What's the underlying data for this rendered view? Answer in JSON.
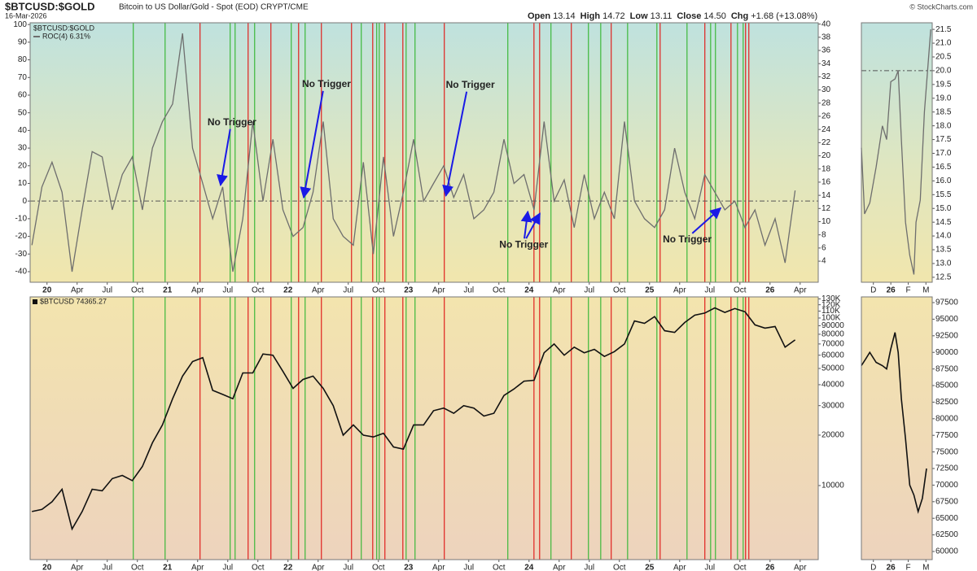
{
  "header": {
    "symbol": "$BTCUSD:$GOLD",
    "description": "Bitcoin to US Dollar/Gold - Spot (EOD) CRYPT/CME",
    "date": "16-Mar-2026",
    "quote": [
      {
        "label": "Open",
        "value": "13.14"
      },
      {
        "label": "High",
        "value": "14.72"
      },
      {
        "label": "Low",
        "value": "13.11"
      },
      {
        "label": "Close",
        "value": "14.50"
      },
      {
        "label": "Chg",
        "value": "+1.68 (+13.08%)"
      }
    ],
    "copyright": "© StockCharts.com"
  },
  "chart_data": [
    {
      "type": "line",
      "legend_title": "$BTCUSD:$GOLD",
      "x": [
        2019.875,
        2019.958,
        2020.042,
        2020.125,
        2020.208,
        2020.292,
        2020.375,
        2020.458,
        2020.542,
        2020.625,
        2020.708,
        2020.792,
        2020.875,
        2020.958,
        2021.042,
        2021.125,
        2021.208,
        2021.292,
        2021.375,
        2021.458,
        2021.542,
        2021.625,
        2021.708,
        2021.792,
        2021.875,
        2021.958,
        2022.042,
        2022.125,
        2022.208,
        2022.292,
        2022.375,
        2022.458,
        2022.542,
        2022.625,
        2022.708,
        2022.792,
        2022.875,
        2022.958,
        2023.042,
        2023.125,
        2023.208,
        2023.292,
        2023.375,
        2023.458,
        2023.542,
        2023.625,
        2023.708,
        2023.792,
        2023.875,
        2023.958,
        2024.042,
        2024.125,
        2024.208,
        2024.292,
        2024.375,
        2024.458,
        2024.542,
        2024.625,
        2024.708,
        2024.792,
        2024.875,
        2024.958,
        2025.042,
        2025.125,
        2025.208,
        2025.292,
        2025.375,
        2025.458,
        2025.542,
        2025.625,
        2025.708,
        2025.792,
        2025.875,
        2025.958,
        2026.042,
        2026.125,
        2026.208
      ],
      "series": [
        {
          "name": "ROC(4) 6.31%",
          "color": "#6e6e6e",
          "values": [
            -25,
            8,
            22,
            5,
            -40,
            -5,
            28,
            25,
            -5,
            15,
            25,
            -5,
            30,
            45,
            55,
            95,
            30,
            10,
            -10,
            8,
            -40,
            -10,
            45,
            0,
            35,
            -5,
            -20,
            -15,
            5,
            45,
            -10,
            -20,
            -25,
            22,
            -30,
            25,
            -20,
            5,
            35,
            0,
            10,
            20,
            2,
            15,
            -10,
            -5,
            5,
            35,
            10,
            15,
            -5,
            45,
            0,
            12,
            -15,
            15,
            -10,
            5,
            -10,
            45,
            0,
            -10,
            -15,
            -5,
            30,
            5,
            -10,
            15,
            5,
            -5,
            0,
            -15,
            -5,
            -25,
            -10,
            -35,
            6
          ]
        }
      ],
      "xlim": [
        2019.86,
        2026.4
      ],
      "xticks": [
        {
          "value": 2020,
          "label": "20"
        },
        {
          "value": 2020.25,
          "label": "Apr"
        },
        {
          "value": 2020.5,
          "label": "Jul"
        },
        {
          "value": 2020.75,
          "label": "Oct"
        },
        {
          "value": 2021,
          "label": "21"
        },
        {
          "value": 2021.25,
          "label": "Apr"
        },
        {
          "value": 2021.5,
          "label": "Jul"
        },
        {
          "value": 2021.75,
          "label": "Oct"
        },
        {
          "value": 2022,
          "label": "22"
        },
        {
          "value": 2022.25,
          "label": "Apr"
        },
        {
          "value": 2022.5,
          "label": "Jul"
        },
        {
          "value": 2022.75,
          "label": "Oct"
        },
        {
          "value": 2023,
          "label": "23"
        },
        {
          "value": 2023.25,
          "label": "Apr"
        },
        {
          "value": 2023.5,
          "label": "Jul"
        },
        {
          "value": 2023.75,
          "label": "Oct"
        },
        {
          "value": 2024,
          "label": "24"
        },
        {
          "value": 2024.25,
          "label": "Apr"
        },
        {
          "value": 2024.5,
          "label": "Jul"
        },
        {
          "value": 2024.75,
          "label": "Oct"
        },
        {
          "value": 2025,
          "label": "25"
        },
        {
          "value": 2025.25,
          "label": "Apr"
        },
        {
          "value": 2025.5,
          "label": "Jul"
        },
        {
          "value": 2025.75,
          "label": "Oct"
        },
        {
          "value": 2026,
          "label": "26"
        },
        {
          "value": 2026.25,
          "label": "Apr"
        }
      ],
      "ylim": [
        -46,
        101
      ],
      "yticks": [
        -40,
        -30,
        -20,
        -10,
        0,
        10,
        20,
        30,
        40,
        50,
        60,
        70,
        80,
        90,
        100
      ],
      "y2lim": [
        0.8,
        40.2
      ],
      "y2ticks": [
        4,
        6,
        8,
        10,
        12,
        14,
        16,
        18,
        20,
        22,
        24,
        26,
        28,
        30,
        32,
        34,
        36,
        38,
        40
      ],
      "refline": 0,
      "vlines": [
        {
          "color": "#e0201e",
          "x": [
            2021.27,
            2021.669,
            2021.858,
            2022.088,
            2022.277,
            2022.527,
            2022.703,
            2022.804,
            2022.953,
            2023.297,
            2024.041,
            2024.088,
            2024.351,
            2024.682,
            2025.088,
            2025.459,
            2025.676,
            2025.797,
            2025.824
          ]
        },
        {
          "color": "#3cb83a",
          "x": [
            2020.716,
            2020.98,
            2021.52,
            2021.561,
            2021.723,
            2022.027,
            2022.142,
            2022.608,
            2022.736,
            2022.757,
            2022.98,
            2023.054,
            2023.824,
            2024.182,
            2024.493,
            2024.595,
            2024.818,
            2025.061,
            2025.311,
            2025.507,
            2025.547,
            2025.73,
            2025.777
          ]
        }
      ],
      "annotations": [
        {
          "text": "No Trigger",
          "targets": [
            [
              2021.44,
              9
            ]
          ]
        },
        {
          "text": "No Trigger",
          "targets": [
            [
              2022.13,
              2
            ]
          ]
        },
        {
          "text": "No Trigger",
          "targets": [
            [
              2023.31,
              3
            ]
          ]
        },
        {
          "text": "No Trigger",
          "targets": [
            [
              2023.99,
              -6
            ],
            [
              2024.09,
              -7
            ]
          ]
        },
        {
          "text": "No Trigger",
          "targets": [
            [
              2025.59,
              -4
            ]
          ]
        }
      ],
      "annotation_color": "#1a1ae6"
    },
    {
      "type": "line",
      "log_scale": true,
      "x": [
        2019.875,
        2019.958,
        2020.042,
        2020.125,
        2020.208,
        2020.292,
        2020.375,
        2020.458,
        2020.542,
        2020.625,
        2020.708,
        2020.792,
        2020.875,
        2020.958,
        2021.042,
        2021.125,
        2021.208,
        2021.292,
        2021.375,
        2021.458,
        2021.542,
        2021.625,
        2021.708,
        2021.792,
        2021.875,
        2021.958,
        2022.042,
        2022.125,
        2022.208,
        2022.292,
        2022.375,
        2022.458,
        2022.542,
        2022.625,
        2022.708,
        2022.792,
        2022.875,
        2022.958,
        2023.042,
        2023.125,
        2023.208,
        2023.292,
        2023.375,
        2023.458,
        2023.542,
        2023.625,
        2023.708,
        2023.792,
        2023.875,
        2023.958,
        2024.042,
        2024.125,
        2024.208,
        2024.292,
        2024.375,
        2024.458,
        2024.542,
        2024.625,
        2024.708,
        2024.792,
        2024.875,
        2024.958,
        2025.042,
        2025.125,
        2025.208,
        2025.292,
        2025.375,
        2025.458,
        2025.542,
        2025.625,
        2025.708,
        2025.792,
        2025.875,
        2025.958,
        2026.042,
        2026.125,
        2026.208
      ],
      "series": [
        {
          "name": "$BTCUSD 74365.27",
          "color": "#111111",
          "values": [
            7000,
            7200,
            8000,
            9500,
            5500,
            7000,
            9500,
            9300,
            11000,
            11500,
            10700,
            13000,
            18000,
            23000,
            33000,
            45000,
            55000,
            58000,
            37000,
            35000,
            33000,
            47000,
            47000,
            61000,
            60000,
            48000,
            38000,
            43000,
            45000,
            38000,
            30000,
            20000,
            23000,
            20000,
            19500,
            20500,
            17000,
            16500,
            23000,
            23000,
            28000,
            29000,
            27000,
            30000,
            29000,
            26000,
            27000,
            34500,
            37700,
            42000,
            42500,
            62000,
            70000,
            60000,
            67000,
            62000,
            65000,
            59000,
            63000,
            70000,
            96000,
            93000,
            102000,
            84000,
            82000,
            94000,
            104000,
            107000,
            115000,
            108000,
            114000,
            109000,
            91000,
            87000,
            89000,
            67000,
            74000
          ]
        }
      ],
      "xlim": [
        2019.86,
        2026.4
      ],
      "xticks": [
        {
          "value": 2020,
          "label": "20"
        },
        {
          "value": 2020.25,
          "label": "Apr"
        },
        {
          "value": 2020.5,
          "label": "Jul"
        },
        {
          "value": 2020.75,
          "label": "Oct"
        },
        {
          "value": 2021,
          "label": "21"
        },
        {
          "value": 2021.25,
          "label": "Apr"
        },
        {
          "value": 2021.5,
          "label": "Jul"
        },
        {
          "value": 2021.75,
          "label": "Oct"
        },
        {
          "value": 2022,
          "label": "22"
        },
        {
          "value": 2022.25,
          "label": "Apr"
        },
        {
          "value": 2022.5,
          "label": "Jul"
        },
        {
          "value": 2022.75,
          "label": "Oct"
        },
        {
          "value": 2023,
          "label": "23"
        },
        {
          "value": 2023.25,
          "label": "Apr"
        },
        {
          "value": 2023.5,
          "label": "Jul"
        },
        {
          "value": 2023.75,
          "label": "Oct"
        },
        {
          "value": 2024,
          "label": "24"
        },
        {
          "value": 2024.25,
          "label": "Apr"
        },
        {
          "value": 2024.5,
          "label": "Jul"
        },
        {
          "value": 2024.75,
          "label": "Oct"
        },
        {
          "value": 2025,
          "label": "25"
        },
        {
          "value": 2025.25,
          "label": "Apr"
        },
        {
          "value": 2025.5,
          "label": "Jul"
        },
        {
          "value": 2025.75,
          "label": "Oct"
        },
        {
          "value": 2026,
          "label": "26"
        },
        {
          "value": 2026.25,
          "label": "Apr"
        }
      ],
      "ylim": [
        3614,
        133700
      ],
      "yticks": [
        10000,
        20000,
        30000,
        40000,
        50000,
        60000,
        70000,
        80000,
        90000,
        {
          "value": 100000,
          "label": "100K"
        },
        {
          "value": 110000,
          "label": "110K"
        },
        {
          "value": 120000,
          "label": "120K"
        },
        {
          "value": 130000,
          "label": "130K"
        }
      ]
    },
    {
      "type": "line",
      "x": [
        2025.86,
        2025.875,
        2025.9,
        2025.93,
        2025.96,
        2025.98,
        2026.0,
        2026.02,
        2026.035,
        2026.05,
        2026.07,
        2026.09,
        2026.11,
        2026.12,
        2026.14,
        2026.16,
        2026.19
      ],
      "series": [
        {
          "color": "#6e6e6e",
          "values": [
            17.2,
            14.8,
            15.2,
            16.5,
            18.0,
            17.5,
            19.6,
            19.7,
            20.0,
            17.5,
            14.5,
            13.3,
            12.6,
            14.5,
            15.3,
            18.5,
            21.5
          ]
        }
      ],
      "xlim": [
        2025.86,
        2026.197
      ],
      "xticks": [
        {
          "value": 2025.917,
          "label": "D"
        },
        {
          "value": 2026.0,
          "label": "26"
        },
        {
          "value": 2026.083,
          "label": "F"
        },
        {
          "value": 2026.167,
          "label": "M"
        }
      ],
      "ylim": [
        12.32,
        21.74
      ],
      "yticks": [
        12.5,
        {
          "value": 13,
          "label": "13.0"
        },
        13.5,
        {
          "value": 14,
          "label": "14.0"
        },
        14.5,
        {
          "value": 15,
          "label": "15.0"
        },
        15.5,
        {
          "value": 16,
          "label": "16.0"
        },
        16.5,
        {
          "value": 17,
          "label": "17.0"
        },
        17.5,
        {
          "value": 18,
          "label": "18.0"
        },
        18.5,
        {
          "value": 19,
          "label": "19.0"
        },
        19.5,
        {
          "value": 20,
          "label": "20.0"
        },
        20.5,
        {
          "value": 21,
          "label": "21.0"
        },
        21.5
      ],
      "refline": 20
    },
    {
      "type": "line",
      "x": [
        2025.86,
        2025.88,
        2025.9,
        2025.93,
        2025.96,
        2025.98,
        2026.0,
        2026.02,
        2026.035,
        2026.05,
        2026.07,
        2026.09,
        2026.11,
        2026.13,
        2026.15,
        2026.17
      ],
      "series": [
        {
          "color": "#111111",
          "values": [
            88000,
            89000,
            90000,
            88500,
            88000,
            87500,
            90500,
            93000,
            90000,
            83000,
            77000,
            70000,
            68500,
            66000,
            68000,
            72500
          ]
        }
      ],
      "xlim": [
        2025.86,
        2026.197
      ],
      "xticks": [
        {
          "value": 2025.917,
          "label": "D"
        },
        {
          "value": 2026.0,
          "label": "26"
        },
        {
          "value": 2026.083,
          "label": "F"
        },
        {
          "value": 2026.167,
          "label": "M"
        }
      ],
      "ylim": [
        58775,
        98360
      ],
      "yticks": [
        60000,
        62500,
        65000,
        67500,
        70000,
        72500,
        75000,
        77500,
        80000,
        82500,
        85000,
        87500,
        90000,
        92500,
        95000,
        97500
      ]
    }
  ]
}
